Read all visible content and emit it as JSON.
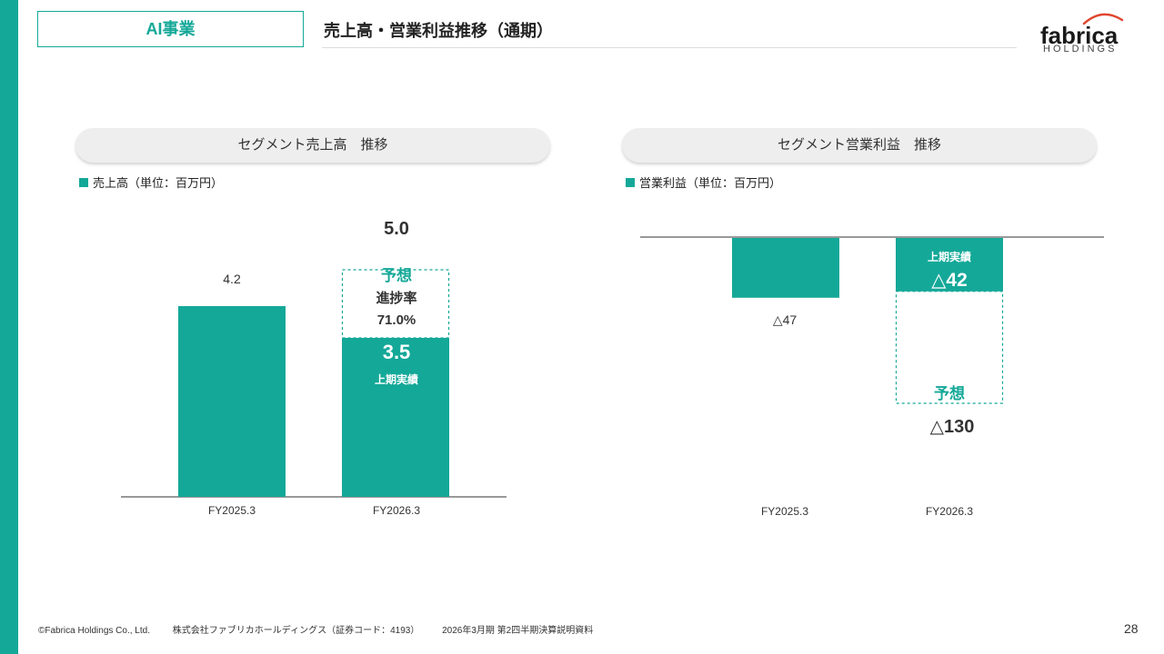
{
  "header": {
    "section_tag": "AI事業",
    "title": "売上高・営業利益推移（通期）"
  },
  "logo": {
    "name": "fabrica",
    "sub": "HOLDINGS"
  },
  "colors": {
    "accent": "#14a898",
    "text": "#333333"
  },
  "chart_data": [
    {
      "type": "bar",
      "title": "セグメント売上高　推移",
      "legend": "売上高（単位：百万円）",
      "categories": [
        "FY2025.3",
        "FY2026.3"
      ],
      "series": [
        {
          "name": "実績",
          "values": [
            4.2,
            3.5
          ]
        },
        {
          "name": "予想",
          "values": [
            null,
            5.0
          ]
        }
      ],
      "ylim": [
        0,
        6.02
      ],
      "labels": {
        "actual_prev": "4.2",
        "forecast_total": "5.0",
        "forecast": "予想",
        "progress_label": "進捗率",
        "progress_value": "71.0%",
        "first_half_value": "3.5",
        "first_half_label": "上期実績"
      }
    },
    {
      "type": "bar",
      "title": "セグメント営業利益　推移",
      "legend": "営業利益（単位：百万円）",
      "categories": [
        "FY2025.3",
        "FY2026.3"
      ],
      "series": [
        {
          "name": "実績",
          "values": [
            -47,
            -42
          ]
        },
        {
          "name": "予想",
          "values": [
            null,
            -130
          ]
        }
      ],
      "ylim": [
        -285,
        0
      ],
      "labels": {
        "actual_prev": "△47",
        "first_half_label": "上期実績",
        "first_half_value": "△42",
        "forecast": "予想",
        "forecast_total": "△130"
      }
    }
  ],
  "footer": {
    "copyright": "©Fabrica Holdings Co., Ltd.",
    "company": "株式会社ファブリカホールディングス（証券コード：4193）",
    "report": "2026年3月期 第2四半期決算説明資料",
    "page": "28"
  }
}
